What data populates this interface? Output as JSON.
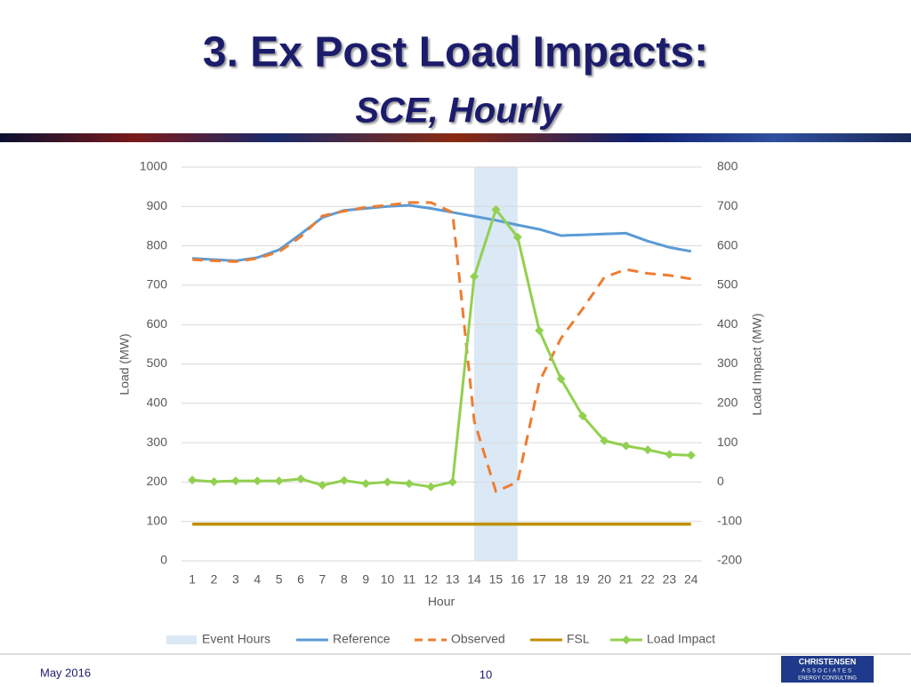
{
  "header": {
    "title": "3. Ex Post Load Impacts:",
    "subtitle": "SCE, Hourly"
  },
  "chart_data": {
    "type": "line",
    "xlabel": "Hour",
    "ylabel": "Load (MW)",
    "y2label": "Load Impact (MW)",
    "categories": [
      "1",
      "2",
      "3",
      "4",
      "5",
      "6",
      "7",
      "8",
      "9",
      "10",
      "11",
      "12",
      "13",
      "14",
      "15",
      "16",
      "17",
      "18",
      "19",
      "20",
      "21",
      "22",
      "23",
      "24"
    ],
    "event_hours": {
      "name": "Event Hours",
      "from": 14,
      "to": 16,
      "color": "#dbe8f6"
    },
    "series": [
      {
        "name": "Reference",
        "color": "#5b9bd5",
        "style": "solid",
        "axis": "y",
        "values": [
          768,
          765,
          762,
          770,
          790,
          830,
          872,
          890,
          895,
          900,
          903,
          895,
          885,
          875,
          865,
          853,
          842,
          826,
          828,
          830,
          832,
          812,
          796,
          786
        ]
      },
      {
        "name": "Observed",
        "color": "#ed7d31",
        "style": "dashed",
        "axis": "y",
        "values": [
          765,
          762,
          760,
          768,
          785,
          823,
          876,
          888,
          898,
          903,
          910,
          910,
          885,
          355,
          176,
          200,
          455,
          565,
          640,
          720,
          740,
          730,
          725,
          716
        ]
      },
      {
        "name": "FSL",
        "color": "#bf9000",
        "style": "solid",
        "axis": "y",
        "values": [
          93,
          93,
          93,
          93,
          93,
          93,
          93,
          93,
          93,
          93,
          93,
          93,
          93,
          93,
          93,
          93,
          93,
          93,
          93,
          93,
          93,
          93,
          93,
          93
        ]
      },
      {
        "name": "Load Impact",
        "color": "#92d050",
        "style": "solid",
        "marker": "diamond",
        "axis": "y2",
        "values": [
          5,
          1,
          3,
          3,
          3,
          8,
          -8,
          4,
          -4,
          0,
          -4,
          -12,
          0,
          522,
          692,
          622,
          385,
          262,
          168,
          105,
          92,
          82,
          70,
          68
        ]
      }
    ],
    "ylim": [
      0,
      1000
    ],
    "yticks": [
      0,
      100,
      200,
      300,
      400,
      500,
      600,
      700,
      800,
      900,
      1000
    ],
    "y2lim": [
      -200,
      800
    ],
    "y2ticks": [
      -200,
      -100,
      0,
      100,
      200,
      300,
      400,
      500,
      600,
      700,
      800
    ],
    "grid": true,
    "legend": "bottom"
  },
  "footer": {
    "date": "May 2016",
    "page": "10",
    "logo": [
      "CHRISTENSEN",
      "ASSOCIATES",
      "ENERGY CONSULTING"
    ]
  }
}
